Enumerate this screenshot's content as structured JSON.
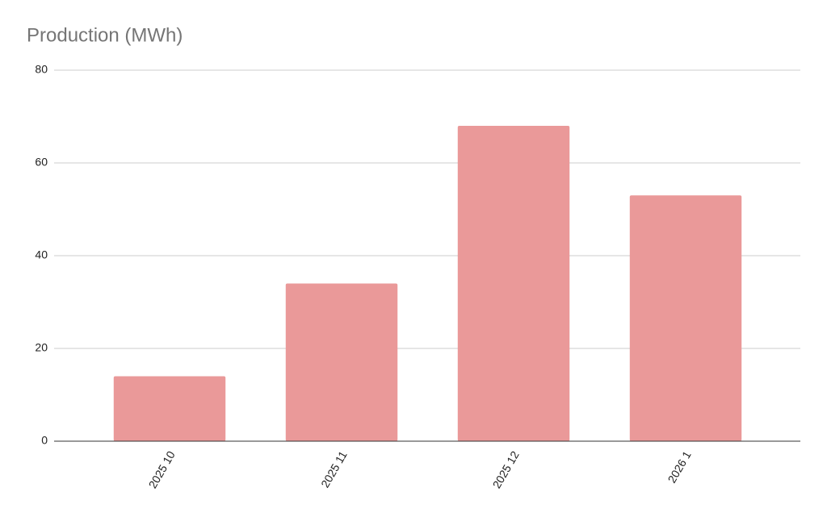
{
  "chart_data": {
    "type": "bar",
    "title": "Production (MWh)",
    "categories": [
      "2025 10",
      "2025 11",
      "2025 12",
      "2026 1"
    ],
    "values": [
      14,
      34,
      68,
      53
    ],
    "color": "#ea9999",
    "ylim": [
      0,
      80
    ],
    "yticks": [
      0,
      20,
      40,
      60,
      80
    ],
    "grid": true
  }
}
